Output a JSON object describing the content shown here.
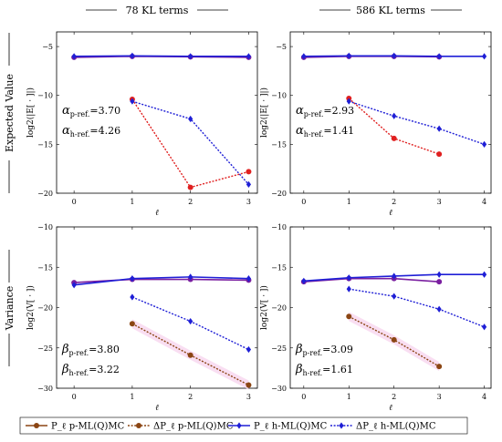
{
  "figure": {
    "column_titles": [
      "78 KL terms",
      "586 KL terms"
    ],
    "row_titles": [
      "Expected Value",
      "Variance"
    ],
    "legend": [
      {
        "label": "P_ℓ p-ML(Q)MC",
        "color": "#8B4513",
        "style": "solid"
      },
      {
        "label": "ΔP_ℓ p-ML(Q)MC",
        "color": "#8B4513",
        "style": "dotted"
      },
      {
        "label": "P_ℓ h-ML(Q)MC",
        "color": "#1f1fd6",
        "style": "solid"
      },
      {
        "label": "ΔP_ℓ h-ML(Q)MC",
        "color": "#1f1fd6",
        "style": "dotted"
      }
    ],
    "colors": {
      "p_top": "#e02020",
      "p_bottom": "#8B4513",
      "h": "#1f1fd6",
      "purple": "#7a1fa0",
      "band": "#f8d8f0"
    }
  },
  "chart_data": [
    {
      "type": "line",
      "panel": "top-left",
      "xlabel": "ℓ",
      "ylabel": "log2(|E[ · ]|)",
      "xlim": [
        -0.3,
        3.15
      ],
      "ylim": [
        -20,
        -3.5
      ],
      "xticks": [
        0,
        1,
        2,
        3
      ],
      "yticks": [
        -20,
        -15,
        -10,
        -5
      ],
      "series": [
        {
          "kind": "P",
          "method": "p",
          "x": [
            0,
            1,
            2,
            3
          ],
          "y": [
            -6.1,
            -6.0,
            -6.05,
            -6.1
          ]
        },
        {
          "kind": "P",
          "method": "h",
          "x": [
            0,
            1,
            2,
            3
          ],
          "y": [
            -6.0,
            -5.95,
            -6.0,
            -6.0
          ]
        },
        {
          "kind": "dP",
          "method": "p",
          "x": [
            1,
            2,
            3
          ],
          "y": [
            -10.4,
            -19.4,
            -17.8
          ]
        },
        {
          "kind": "dP",
          "method": "h",
          "x": [
            1,
            2,
            3
          ],
          "y": [
            -10.6,
            -12.4,
            -19.1
          ]
        }
      ],
      "annotations": [
        {
          "symbol": "α",
          "sub": "p-ref.",
          "value": "=3.70"
        },
        {
          "symbol": "α",
          "sub": "h-ref.",
          "value": "=4.26"
        }
      ]
    },
    {
      "type": "line",
      "panel": "top-right",
      "xlabel": "ℓ",
      "ylabel": "log2(|E[ · ]|)",
      "xlim": [
        -0.3,
        4.15
      ],
      "ylim": [
        -20,
        -3.5
      ],
      "xticks": [
        0,
        1,
        2,
        3,
        4
      ],
      "yticks": [
        -20,
        -15,
        -10,
        -5
      ],
      "series": [
        {
          "kind": "P",
          "method": "p",
          "x": [
            0,
            1,
            2,
            3
          ],
          "y": [
            -6.1,
            -6.0,
            -6.0,
            -6.05
          ]
        },
        {
          "kind": "P",
          "method": "h",
          "x": [
            0,
            1,
            2,
            3,
            4
          ],
          "y": [
            -6.0,
            -5.95,
            -5.95,
            -6.0,
            -6.0
          ]
        },
        {
          "kind": "dP",
          "method": "p",
          "x": [
            1,
            2,
            3
          ],
          "y": [
            -10.3,
            -14.4,
            -16.0
          ]
        },
        {
          "kind": "dP",
          "method": "h",
          "x": [
            1,
            2,
            3,
            4
          ],
          "y": [
            -10.6,
            -12.1,
            -13.4,
            -15.0
          ]
        }
      ],
      "annotations": [
        {
          "symbol": "α",
          "sub": "p-ref.",
          "value": "=2.93"
        },
        {
          "symbol": "α",
          "sub": "h-ref.",
          "value": "=1.41"
        }
      ]
    },
    {
      "type": "line",
      "panel": "bottom-left",
      "xlabel": "ℓ",
      "ylabel": "log2(V[ · ])",
      "xlim": [
        -0.3,
        3.15
      ],
      "ylim": [
        -30,
        -10
      ],
      "xticks": [
        0,
        1,
        2,
        3
      ],
      "yticks": [
        -30,
        -25,
        -20,
        -15,
        -10
      ],
      "series": [
        {
          "kind": "P",
          "method": "p",
          "x": [
            0,
            1,
            2,
            3
          ],
          "y": [
            -16.9,
            -16.5,
            -16.5,
            -16.6
          ]
        },
        {
          "kind": "P",
          "method": "h",
          "x": [
            0,
            1,
            2,
            3
          ],
          "y": [
            -17.2,
            -16.4,
            -16.2,
            -16.4
          ]
        },
        {
          "kind": "dP",
          "method": "p",
          "x": [
            1,
            2,
            3
          ],
          "y": [
            -22.0,
            -25.9,
            -29.6
          ]
        },
        {
          "kind": "dP",
          "method": "h",
          "x": [
            1,
            2,
            3
          ],
          "y": [
            -18.7,
            -21.7,
            -25.2
          ]
        }
      ],
      "annotations": [
        {
          "symbol": "β",
          "sub": "p-ref.",
          "value": "=3.80"
        },
        {
          "symbol": "β",
          "sub": "h-ref.",
          "value": "=3.22"
        }
      ]
    },
    {
      "type": "line",
      "panel": "bottom-right",
      "xlabel": "ℓ",
      "ylabel": "log2(V[ · ])",
      "xlim": [
        -0.3,
        4.15
      ],
      "ylim": [
        -30,
        -10
      ],
      "xticks": [
        0,
        1,
        2,
        3,
        4
      ],
      "yticks": [
        -30,
        -25,
        -20,
        -15,
        -10
      ],
      "series": [
        {
          "kind": "P",
          "method": "p",
          "x": [
            0,
            1,
            2,
            3
          ],
          "y": [
            -16.8,
            -16.4,
            -16.4,
            -16.8
          ]
        },
        {
          "kind": "P",
          "method": "h",
          "x": [
            0,
            1,
            2,
            3,
            4
          ],
          "y": [
            -16.7,
            -16.3,
            -16.1,
            -15.9,
            -15.9
          ]
        },
        {
          "kind": "dP",
          "method": "p",
          "x": [
            1,
            2,
            3
          ],
          "y": [
            -21.1,
            -24.0,
            -27.3
          ]
        },
        {
          "kind": "dP",
          "method": "h",
          "x": [
            1,
            2,
            3,
            4
          ],
          "y": [
            -17.7,
            -18.6,
            -20.2,
            -22.4
          ]
        }
      ],
      "annotations": [
        {
          "symbol": "β",
          "sub": "p-ref.",
          "value": "=3.09"
        },
        {
          "symbol": "β",
          "sub": "h-ref.",
          "value": "=1.61"
        }
      ]
    }
  ]
}
